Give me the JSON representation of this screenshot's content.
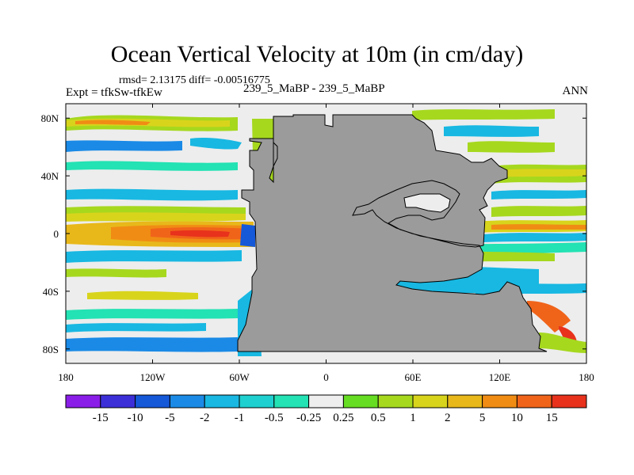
{
  "title": "Ocean Vertical Velocity at 10m (in cm/day)",
  "stats": "rmsd= 2.13175  diff= -0.00516775",
  "experiment": "Expt = tfkSw-tfkEw",
  "case_label": "239_5_MaBP - 239_5_MaBP",
  "season": "ANN",
  "colors": {
    "land": "#9b9b9b",
    "ocean_background": "#ededed"
  },
  "map": {
    "lon_range": [
      -180,
      180
    ],
    "lat_range": [
      -90,
      90
    ],
    "lat_ticks": [
      {
        "value": 80,
        "label": "80N"
      },
      {
        "value": 40,
        "label": "40N"
      },
      {
        "value": 0,
        "label": "0"
      },
      {
        "value": -40,
        "label": "40S"
      },
      {
        "value": -80,
        "label": "80S"
      }
    ],
    "lon_ticks": [
      {
        "value": -180,
        "label": "180"
      },
      {
        "value": -120,
        "label": "120W"
      },
      {
        "value": -60,
        "label": "60W"
      },
      {
        "value": 0,
        "label": "0"
      },
      {
        "value": 60,
        "label": "60E"
      },
      {
        "value": 120,
        "label": "120E"
      },
      {
        "value": 180,
        "label": "180"
      }
    ]
  },
  "colorbar": {
    "labels": [
      "-15",
      "-10",
      "-5",
      "-2",
      "-1",
      "-0.5",
      "-0.25",
      "0.25",
      "0.5",
      "1",
      "2",
      "5",
      "10",
      "15"
    ],
    "colors": [
      "#8a1ee8",
      "#3c2fd8",
      "#1558d8",
      "#1a8ae6",
      "#18b8e2",
      "#1fd0d0",
      "#23e2b3",
      "#eeeeee",
      "#66dd22",
      "#a6d81e",
      "#d8d41c",
      "#e8b81a",
      "#f08c14",
      "#f0641a",
      "#e8321c"
    ]
  }
}
